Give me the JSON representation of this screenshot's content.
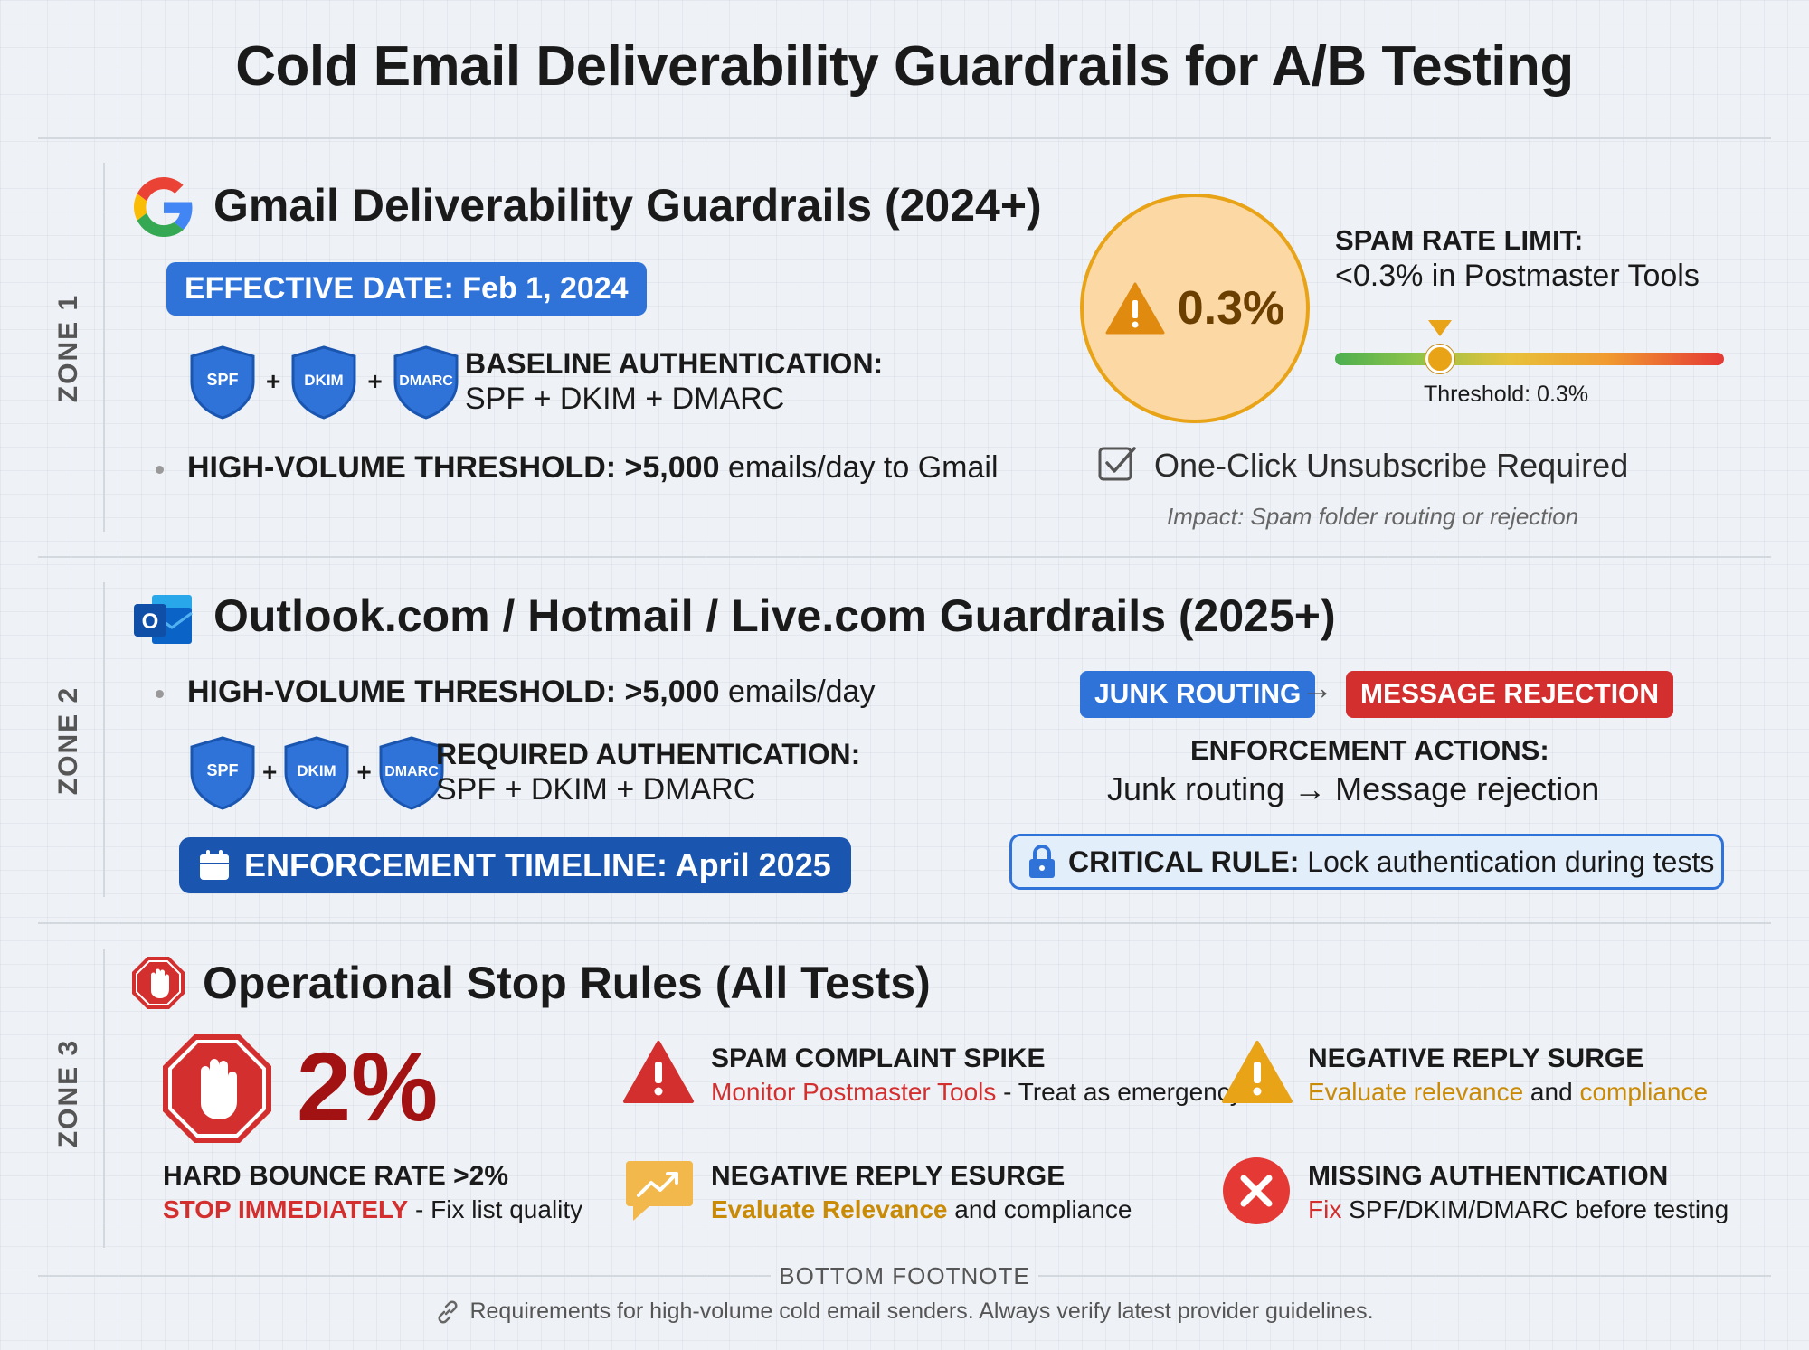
{
  "title": "Cold Email Deliverability Guardrails for A/B Testing",
  "colors": {
    "blue": "#2f73d9",
    "navy": "#1a56b0",
    "red": "#d32f2f",
    "amber": "#e8a317",
    "green": "#4caf50"
  },
  "zone1": {
    "label": "ZONE 1",
    "title": "Gmail Deliverability Guardrails (2024+)",
    "effective_date": "EFFECTIVE DATE: Feb 1, 2024",
    "shields": [
      "SPF",
      "DKIM",
      "DMARC"
    ],
    "plus": "+",
    "auth_heading": "BASELINE AUTHENTICATION:",
    "auth_value": "SPF + DKIM + DMARC",
    "threshold_label": "HIGH-VOLUME THRESHOLD:",
    "threshold_value": ">5,000",
    "threshold_suffix": "emails/day to Gmail",
    "spam_rate": "0.3%",
    "spam_limit_heading": "SPAM RATE LIMIT:",
    "spam_limit_value": "<0.3% in Postmaster Tools",
    "threshold_caption": "Threshold: 0.3%",
    "threshold_level": 0.27,
    "unsubscribe": "One-Click Unsubscribe Required",
    "impact": "Impact: Spam folder routing or rejection"
  },
  "zone2": {
    "label": "ZONE 2",
    "title": "Outlook.com / Hotmail / Live.com Guardrails (2025+)",
    "threshold_label": "HIGH-VOLUME THRESHOLD:",
    "threshold_value": ">5,000",
    "threshold_suffix": "emails/day",
    "shields": [
      "SPF",
      "DKIM",
      "DMARC"
    ],
    "plus": "+",
    "auth_heading": "REQUIRED AUTHENTICATION:",
    "auth_value": "SPF + DKIM + DMARC",
    "timeline": "ENFORCEMENT TIMELINE: April 2025",
    "tag_junk": "JUNK ROUTING",
    "arrow": "→",
    "tag_reject": "MESSAGE REJECTION",
    "enforcement_heading": "ENFORCEMENT ACTIONS:",
    "enforcement_value": "Junk routing → Message rejection",
    "critical_label": "CRITICAL RULE:",
    "critical_value": "Lock authentication during tests"
  },
  "zone3": {
    "label": "ZONE 3",
    "title": "Operational Stop Rules (All Tests)",
    "bounce_pct": "2%",
    "bounce_heading": "HARD BOUNCE RATE >2%",
    "bounce_action": "STOP IMMEDIATELY",
    "bounce_rest": "- Fix list quality",
    "rules": [
      {
        "title": "SPAM COMPLAINT SPIKE",
        "part1": "Monitor Postmaster Tools",
        "part2": " - Treat as emergency",
        "icon": "warning-red-icon"
      },
      {
        "title": "NEGATIVE REPLY SURGE",
        "part1": "Evaluate relevance",
        "part2": " and ",
        "part3": "compliance",
        "icon": "warning-amber-icon"
      },
      {
        "title": "NEGATIVE REPLY ESURGE",
        "part1": "Evaluate Relevance",
        "part2": " and compliance",
        "icon": "trend-chat-icon"
      },
      {
        "title": "MISSING AUTHENTICATION",
        "part1": "Fix",
        "part2": " SPF/DKIM/DMARC before testing",
        "icon": "x-circle-icon"
      }
    ]
  },
  "footer": {
    "heading": "BOTTOM FOOTNOTE",
    "note": "Requirements for high-volume cold email senders. Always verify latest provider guidelines."
  }
}
